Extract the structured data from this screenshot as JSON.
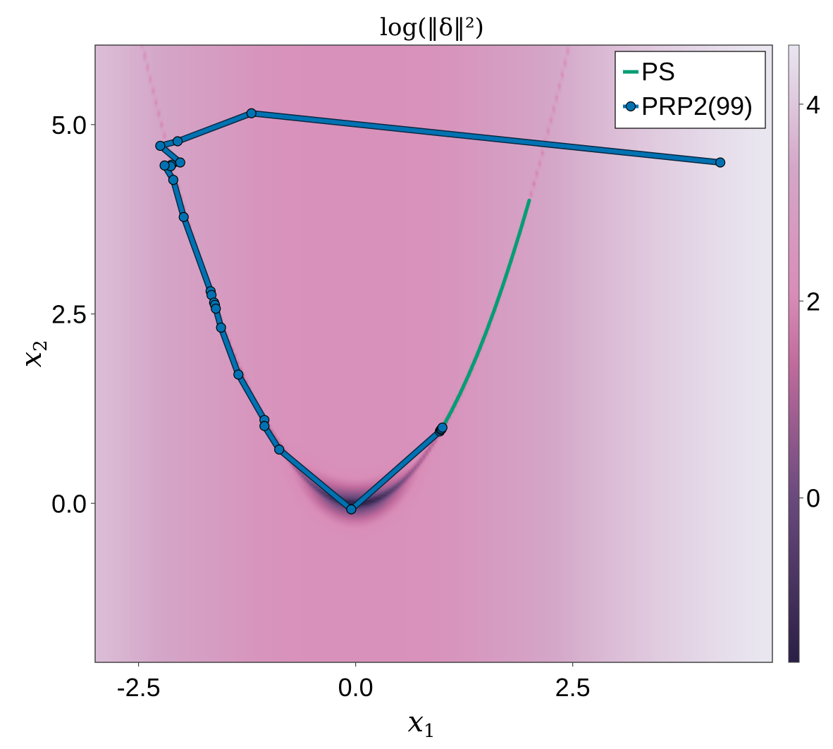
{
  "chart_data": {
    "type": "heatmap",
    "title": "log(‖δ‖²)",
    "xlabel": "x",
    "xlabel_sub": "1",
    "ylabel": "x",
    "ylabel_sub": "2",
    "xlim": [
      -3.0,
      4.8
    ],
    "ylim": [
      -2.1,
      6.05
    ],
    "xticks": [
      -2.5,
      0.0,
      2.5
    ],
    "xtick_labels": [
      "-2.5",
      "0.0",
      "2.5"
    ],
    "yticks": [
      0.0,
      2.5,
      5.0
    ],
    "ytick_labels": [
      "0.0",
      "2.5",
      "5.0"
    ],
    "colorbar": {
      "range": [
        -1.67,
        4.6
      ],
      "ticks": [
        0,
        2,
        4
      ],
      "tick_labels": [
        "0",
        "2",
        "4"
      ],
      "colormap": [
        "#2a1f45",
        "#6b4a7e",
        "#c06a9c",
        "#d98db8",
        "#d4a6c8",
        "#e9e6f0"
      ]
    },
    "grid": false,
    "legend_position": "top-right",
    "series": [
      {
        "name": "PS",
        "style": "line",
        "color": "#009e73",
        "points": [
          [
            1.0,
            1.0
          ],
          [
            1.1,
            1.21
          ],
          [
            1.2,
            1.44
          ],
          [
            1.3,
            1.69
          ],
          [
            1.4,
            1.96
          ],
          [
            1.5,
            2.25
          ],
          [
            1.6,
            2.56
          ],
          [
            1.7,
            2.89
          ],
          [
            1.8,
            3.24
          ],
          [
            1.9,
            3.61
          ],
          [
            2.0,
            4.0
          ]
        ]
      },
      {
        "name": "PRP2(99)",
        "style": "line+markers",
        "color": "#0072b2",
        "points": [
          [
            4.2,
            4.5
          ],
          [
            -1.2,
            5.15
          ],
          [
            -2.05,
            4.78
          ],
          [
            -2.25,
            4.72
          ],
          [
            -2.02,
            4.5
          ],
          [
            -2.12,
            4.47
          ],
          [
            -2.13,
            4.45
          ],
          [
            -2.2,
            4.46
          ],
          [
            -2.1,
            4.27
          ],
          [
            -1.98,
            3.78
          ],
          [
            -1.67,
            2.8
          ],
          [
            -1.66,
            2.75
          ],
          [
            -1.63,
            2.65
          ],
          [
            -1.62,
            2.62
          ],
          [
            -1.61,
            2.57
          ],
          [
            -1.55,
            2.32
          ],
          [
            -1.35,
            1.7
          ],
          [
            -1.05,
            1.1
          ],
          [
            -1.05,
            1.02
          ],
          [
            -0.88,
            0.71
          ],
          [
            -0.05,
            -0.08
          ],
          [
            0.97,
            0.95
          ],
          [
            0.98,
            0.97
          ],
          [
            0.99,
            0.98
          ],
          [
            1.0,
            1.0
          ]
        ]
      }
    ]
  }
}
